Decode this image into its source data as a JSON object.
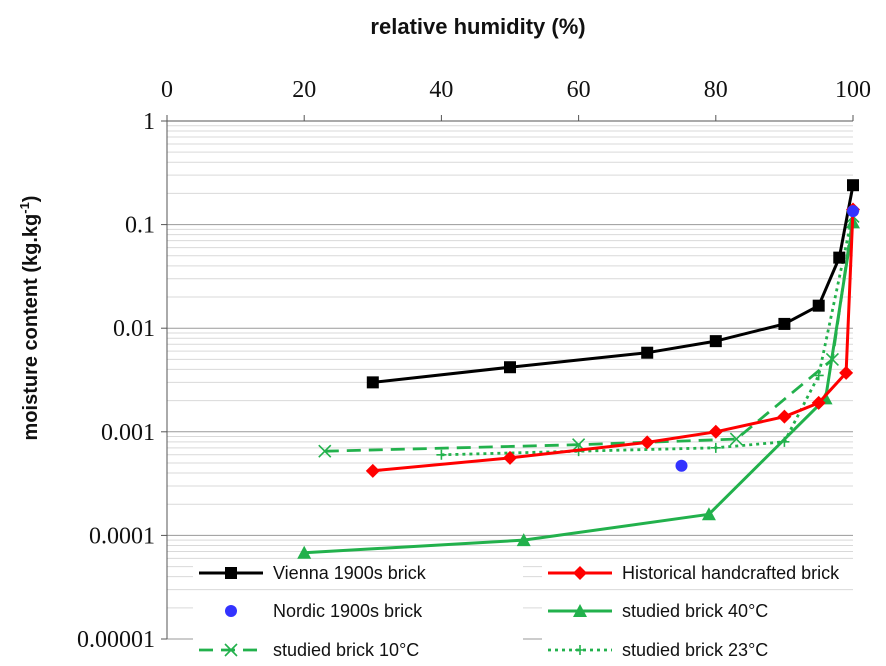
{
  "chart_data": {
    "type": "line",
    "title": "relative humidity (%)",
    "xlabel": "relative humidity (%)",
    "ylabel": "moisture content (kg.kg-1)",
    "ylabel_base": "moisture content (kg.kg",
    "ylabel_sup": "-1",
    "ylabel_close": ")",
    "x_axis_position": "top",
    "xlim": [
      0,
      100
    ],
    "x_ticks": [
      0,
      20,
      40,
      60,
      80,
      100
    ],
    "x_tick_labels": [
      "0",
      "20",
      "40",
      "60",
      "80",
      "100"
    ],
    "y_scale": "log",
    "ylim": [
      1e-05,
      1
    ],
    "y_ticks": [
      1,
      0.1,
      0.01,
      0.001,
      0.0001,
      1e-05
    ],
    "y_tick_labels": [
      "1",
      "0.1",
      "0.01",
      "0.001",
      "0.0001",
      "0.00001"
    ],
    "grid": true,
    "legend_position": "bottom",
    "series": [
      {
        "name": "Vienna 1900s brick",
        "color": "#000000",
        "marker": "square",
        "line": "solid",
        "x": [
          30,
          50,
          70,
          80,
          90,
          95,
          98,
          100
        ],
        "y": [
          0.003,
          0.0042,
          0.0058,
          0.0075,
          0.011,
          0.0165,
          0.048,
          0.24
        ]
      },
      {
        "name": "Historical handcrafted brick",
        "color": "#ff0000",
        "marker": "diamond",
        "line": "solid",
        "x": [
          30,
          50,
          70,
          80,
          90,
          95,
          99,
          100
        ],
        "y": [
          0.00042,
          0.00056,
          0.00079,
          0.001,
          0.0014,
          0.0019,
          0.0037,
          0.14
        ]
      },
      {
        "name": "Nordic 1900s brick",
        "color": "#3333ff",
        "marker": "circle",
        "line": "none",
        "x": [
          75,
          100
        ],
        "y": [
          0.00047,
          0.135
        ]
      },
      {
        "name": "studied brick 40°C",
        "color": "#22b14c",
        "marker": "triangle",
        "line": "solid",
        "x": [
          20,
          52,
          79,
          96,
          100
        ],
        "y": [
          6.8e-05,
          9e-05,
          0.00016,
          0.0021,
          0.105
        ]
      },
      {
        "name": "studied brick 10°C",
        "color": "#22b14c",
        "marker": "x",
        "line": "dashed",
        "x": [
          23,
          60,
          83,
          97,
          100
        ],
        "y": [
          0.00065,
          0.00075,
          0.00085,
          0.005,
          0.12
        ]
      },
      {
        "name": "studied brick 23°C",
        "color": "#22b14c",
        "marker": "plus",
        "line": "dotted",
        "x": [
          40,
          60,
          80,
          90,
          95,
          100
        ],
        "y": [
          0.0006,
          0.00065,
          0.0007,
          0.0008,
          0.0035,
          0.13
        ]
      }
    ]
  }
}
